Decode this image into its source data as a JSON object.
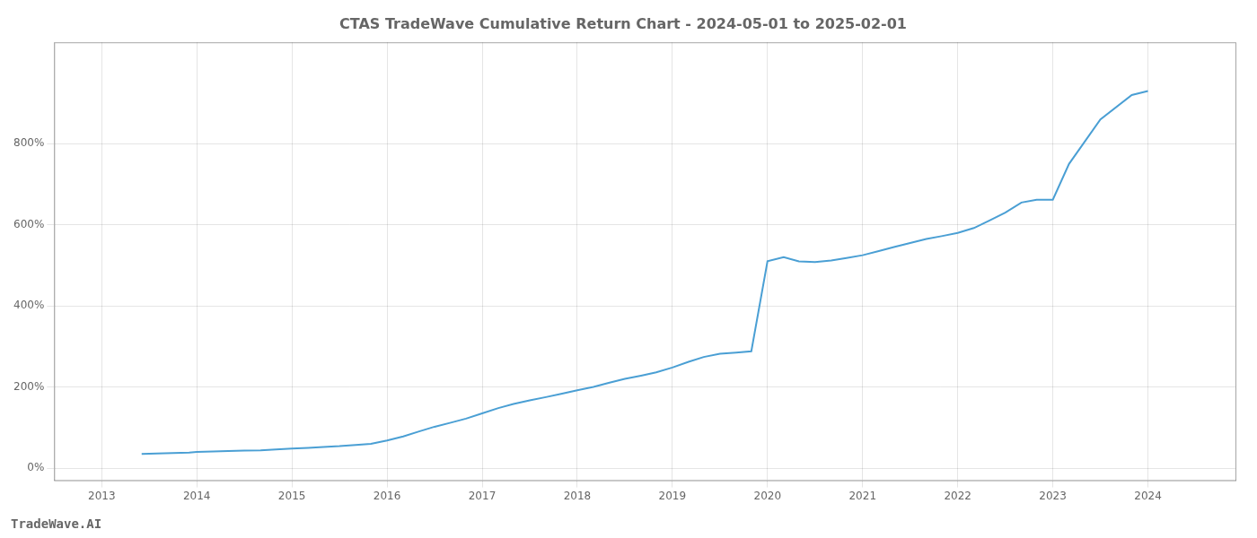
{
  "chart_data": {
    "type": "line",
    "title": "CTAS TradeWave Cumulative Return Chart - 2024-05-01 to 2025-02-01",
    "annotations": [
      "TradeWave.AI"
    ],
    "color": "#4a9fd4",
    "grid": true,
    "x": [
      2013.42,
      2013.58,
      2013.75,
      2013.92,
      2014.0,
      2014.17,
      2014.33,
      2014.5,
      2014.67,
      2014.83,
      2015.0,
      2015.17,
      2015.33,
      2015.5,
      2015.67,
      2015.83,
      2016.0,
      2016.17,
      2016.33,
      2016.5,
      2016.67,
      2016.83,
      2017.0,
      2017.17,
      2017.33,
      2017.5,
      2017.67,
      2017.83,
      2018.0,
      2018.17,
      2018.33,
      2018.5,
      2018.67,
      2018.83,
      2019.0,
      2019.17,
      2019.33,
      2019.5,
      2019.67,
      2019.83,
      2020.0,
      2020.17,
      2020.33,
      2020.5,
      2020.67,
      2020.83,
      2021.0,
      2021.17,
      2021.33,
      2021.5,
      2021.67,
      2021.83,
      2022.0,
      2022.17,
      2022.33,
      2022.5,
      2022.67,
      2022.83,
      2023.0,
      2023.17,
      2023.5,
      2023.83,
      2024.0
    ],
    "values": [
      0.35,
      0.36,
      0.37,
      0.38,
      0.4,
      0.41,
      0.42,
      0.43,
      0.44,
      0.46,
      0.48,
      0.5,
      0.52,
      0.54,
      0.57,
      0.6,
      0.68,
      0.78,
      0.9,
      1.02,
      1.12,
      1.22,
      1.35,
      1.48,
      1.58,
      1.67,
      1.75,
      1.83,
      1.92,
      2.0,
      2.1,
      2.2,
      2.28,
      2.36,
      2.48,
      2.62,
      2.74,
      2.82,
      2.85,
      2.88,
      5.1,
      5.2,
      5.1,
      5.08,
      5.12,
      5.18,
      5.25,
      5.35,
      5.45,
      5.55,
      5.65,
      5.72,
      5.8,
      5.92,
      6.1,
      6.3,
      6.55,
      6.62,
      6.62,
      7.5,
      8.6,
      9.2,
      9.3
    ],
    "xlim": [
      2012.5,
      2024.92
    ],
    "xticks": [
      2013,
      2014,
      2015,
      2016,
      2017,
      2018,
      2019,
      2020,
      2021,
      2022,
      2023,
      2024
    ],
    "ylim": [
      -0.3,
      10.5
    ],
    "yticks": [
      {
        "value": 0,
        "label": "0%"
      },
      {
        "value": 2,
        "label": "200%"
      },
      {
        "value": 4,
        "label": "400%"
      },
      {
        "value": 6,
        "label": "600%"
      },
      {
        "value": 8,
        "label": "800%"
      }
    ]
  }
}
